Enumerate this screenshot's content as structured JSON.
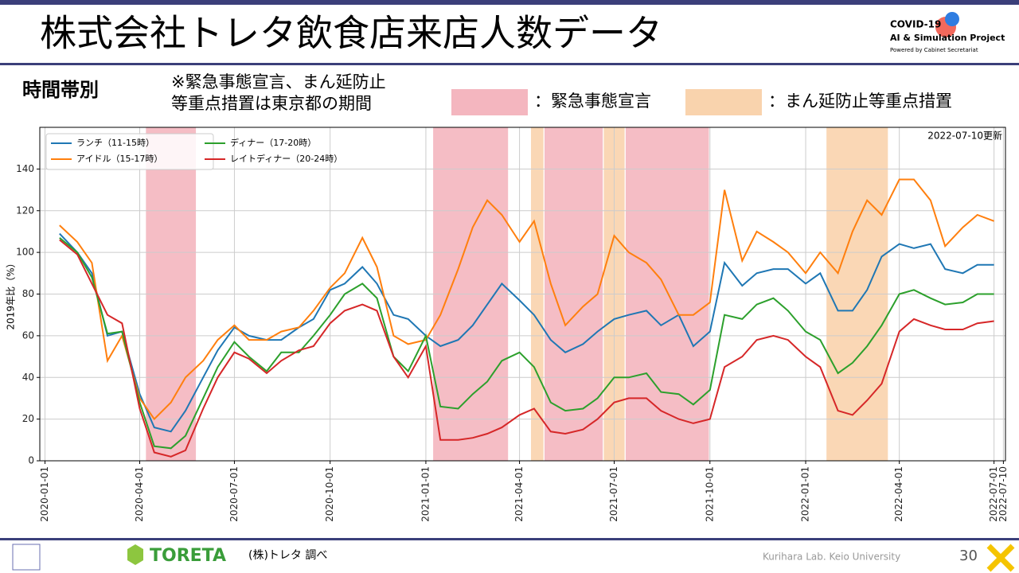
{
  "header": {
    "title": "株式会社トレタ飲食店来店人数データ",
    "logo_lines": [
      "COVID-19",
      "AI & Simulation Project",
      "Powered by Cabinet Secretariat"
    ]
  },
  "section": "時間帯別",
  "note_lines": [
    "※緊急事態宣言、まん延防止",
    "等重点措置は東京都の期間"
  ],
  "chart_data": {
    "type": "line",
    "ylabel": "2019年比（%）",
    "annotation": "2022-07-10更新",
    "xlim": [
      "2019-12-27",
      "2022-07-12"
    ],
    "ylim": [
      0,
      160
    ],
    "yticks": [
      0,
      20,
      40,
      60,
      80,
      100,
      120,
      140
    ],
    "xticks": [
      "2020-01-01",
      "2020-04-01",
      "2020-07-01",
      "2020-10-01",
      "2021-01-01",
      "2021-04-01",
      "2021-07-01",
      "2021-10-01",
      "2022-01-01",
      "2022-04-01",
      "2022-07-01",
      "2022-07-10"
    ],
    "grid": true,
    "legend": "upper left",
    "bands": [
      {
        "name": "：緊急事態宣言",
        "color": "#f4b6bf",
        "ranges": [
          [
            "2020-04-07",
            "2020-05-25"
          ],
          [
            "2021-01-08",
            "2021-03-21"
          ],
          [
            "2021-04-25",
            "2021-06-20"
          ],
          [
            "2021-07-12",
            "2021-09-30"
          ]
        ]
      },
      {
        "name": "：まん延防止等重点措置",
        "color": "#f9d3ad",
        "ranges": [
          [
            "2021-04-12",
            "2021-04-24"
          ],
          [
            "2021-06-21",
            "2021-07-11"
          ],
          [
            "2022-01-21",
            "2022-03-21"
          ]
        ]
      }
    ],
    "x": [
      "2020-01-15",
      "2020-02-01",
      "2020-02-15",
      "2020-03-01",
      "2020-03-15",
      "2020-04-01",
      "2020-04-15",
      "2020-05-01",
      "2020-05-15",
      "2020-06-01",
      "2020-06-15",
      "2020-07-01",
      "2020-07-15",
      "2020-08-01",
      "2020-08-15",
      "2020-09-01",
      "2020-09-15",
      "2020-10-01",
      "2020-10-15",
      "2020-11-01",
      "2020-11-15",
      "2020-12-01",
      "2020-12-15",
      "2021-01-01",
      "2021-01-15",
      "2021-02-01",
      "2021-02-15",
      "2021-03-01",
      "2021-03-15",
      "2021-04-01",
      "2021-04-15",
      "2021-05-01",
      "2021-05-15",
      "2021-06-01",
      "2021-06-15",
      "2021-07-01",
      "2021-07-15",
      "2021-08-01",
      "2021-08-15",
      "2021-09-01",
      "2021-09-15",
      "2021-10-01",
      "2021-10-15",
      "2021-11-01",
      "2021-11-15",
      "2021-12-01",
      "2021-12-15",
      "2022-01-01",
      "2022-01-15",
      "2022-02-01",
      "2022-02-15",
      "2022-03-01",
      "2022-03-15",
      "2022-04-01",
      "2022-04-15",
      "2022-05-01",
      "2022-05-15",
      "2022-06-01",
      "2022-06-15",
      "2022-07-01"
    ],
    "series": [
      {
        "name": "ランチ（11-15時）",
        "color": "#1f77b4",
        "values": [
          109,
          100,
          90,
          60,
          62,
          32,
          16,
          14,
          24,
          40,
          53,
          64,
          60,
          58,
          58,
          64,
          68,
          82,
          85,
          93,
          85,
          70,
          68,
          60,
          55,
          58,
          65,
          75,
          85,
          77,
          70,
          58,
          52,
          56,
          62,
          68,
          70,
          72,
          65,
          70,
          55,
          62,
          95,
          84,
          90,
          92,
          92,
          85,
          90,
          72,
          72,
          82,
          98,
          104,
          102,
          104,
          92,
          90,
          94,
          94
        ]
      },
      {
        "name": "アイドル（15-17時）",
        "color": "#ff7f0e",
        "values": [
          113,
          105,
          95,
          48,
          60,
          30,
          20,
          28,
          40,
          48,
          58,
          65,
          58,
          58,
          62,
          64,
          72,
          83,
          90,
          107,
          93,
          60,
          56,
          58,
          70,
          92,
          112,
          125,
          118,
          105,
          115,
          85,
          65,
          74,
          80,
          108,
          100,
          95,
          87,
          70,
          70,
          76,
          130,
          96,
          110,
          105,
          100,
          90,
          100,
          90,
          110,
          125,
          118,
          135,
          135,
          125,
          103,
          112,
          118,
          115
        ]
      },
      {
        "name": "ディナー（17-20時）",
        "color": "#2ca02c",
        "values": [
          107,
          100,
          88,
          61,
          62,
          28,
          7,
          6,
          12,
          30,
          45,
          57,
          50,
          43,
          52,
          52,
          60,
          70,
          80,
          85,
          78,
          50,
          43,
          60,
          26,
          25,
          32,
          38,
          48,
          52,
          45,
          28,
          24,
          25,
          30,
          40,
          40,
          42,
          33,
          32,
          27,
          34,
          70,
          68,
          75,
          78,
          72,
          62,
          58,
          42,
          47,
          55,
          65,
          80,
          82,
          78,
          75,
          76,
          80,
          80
        ]
      },
      {
        "name": "レイトディナー（20-24時）",
        "color": "#d62728",
        "values": [
          106,
          99,
          85,
          70,
          66,
          25,
          4,
          2,
          5,
          25,
          40,
          52,
          49,
          42,
          48,
          53,
          55,
          66,
          72,
          75,
          72,
          50,
          40,
          55,
          10,
          10,
          11,
          13,
          16,
          22,
          25,
          14,
          13,
          15,
          20,
          28,
          30,
          30,
          24,
          20,
          18,
          20,
          45,
          50,
          58,
          60,
          58,
          50,
          45,
          24,
          22,
          29,
          37,
          62,
          68,
          65,
          63,
          63,
          66,
          67
        ]
      }
    ]
  },
  "footer": {
    "brand": "TORETA",
    "source": "(株)トレタ 調べ",
    "lab": "Kurihara Lab. Keio University",
    "page": "30"
  }
}
